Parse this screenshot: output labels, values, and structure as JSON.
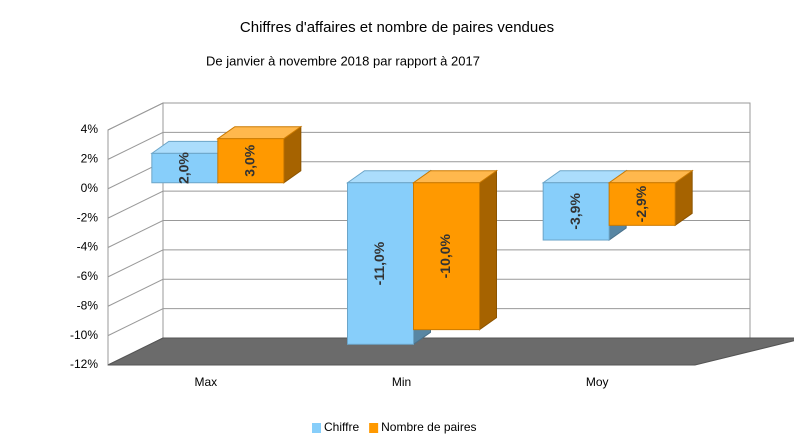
{
  "chart_data": {
    "type": "bar3d",
    "title": "Chiffres d'affaires et nombre de paires vendues",
    "subtitle": "De janvier à novembre 2018 par rapport à 2017",
    "categories": [
      "Max",
      "Min",
      "Moy"
    ],
    "series": [
      {
        "name": "Chiffre",
        "color": "#87cefa",
        "values": [
          2.0,
          -11.0,
          -3.9
        ],
        "value_labels": [
          "2,0%",
          "-11,0%",
          "-3,9%"
        ]
      },
      {
        "name": "Nombre de paires",
        "color": "#ff9900",
        "values": [
          3.0,
          -10.0,
          -2.9
        ],
        "value_labels": [
          "3,0%",
          "-10,0%",
          "-2,9%"
        ]
      }
    ],
    "ylim": [
      -12,
      4
    ],
    "yticks": [
      {
        "value": 4,
        "label": "4%"
      },
      {
        "value": 2,
        "label": "2%"
      },
      {
        "value": 0,
        "label": "0%"
      },
      {
        "value": -2,
        "label": "-2%"
      },
      {
        "value": -4,
        "label": "-4%"
      },
      {
        "value": -6,
        "label": "-6%"
      },
      {
        "value": -8,
        "label": "-8%"
      },
      {
        "value": -10,
        "label": "-10%"
      },
      {
        "value": -12,
        "label": "-12%"
      }
    ],
    "grid": true,
    "legend": "bottom"
  }
}
